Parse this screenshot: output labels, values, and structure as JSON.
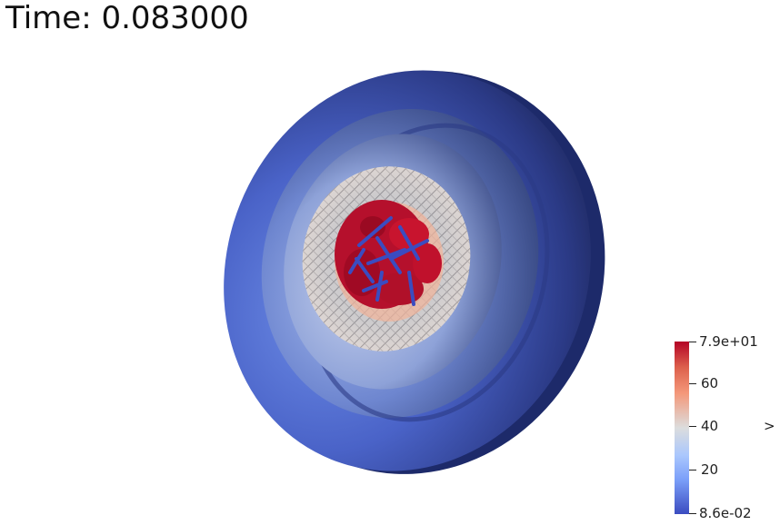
{
  "time_label": "Time: 0.083000",
  "colorbar": {
    "labels": {
      "max": "7.9e+01",
      "t60": "60",
      "t40": "40",
      "t20": "20",
      "min": "8.6e-02"
    },
    "colors": [
      "#b40426",
      "#dd604c",
      "#f4987a",
      "#dcdddd",
      "#aac7fd",
      "#7b9ff9",
      "#3b4cc0"
    ]
  },
  "toggle_label": ">"
}
